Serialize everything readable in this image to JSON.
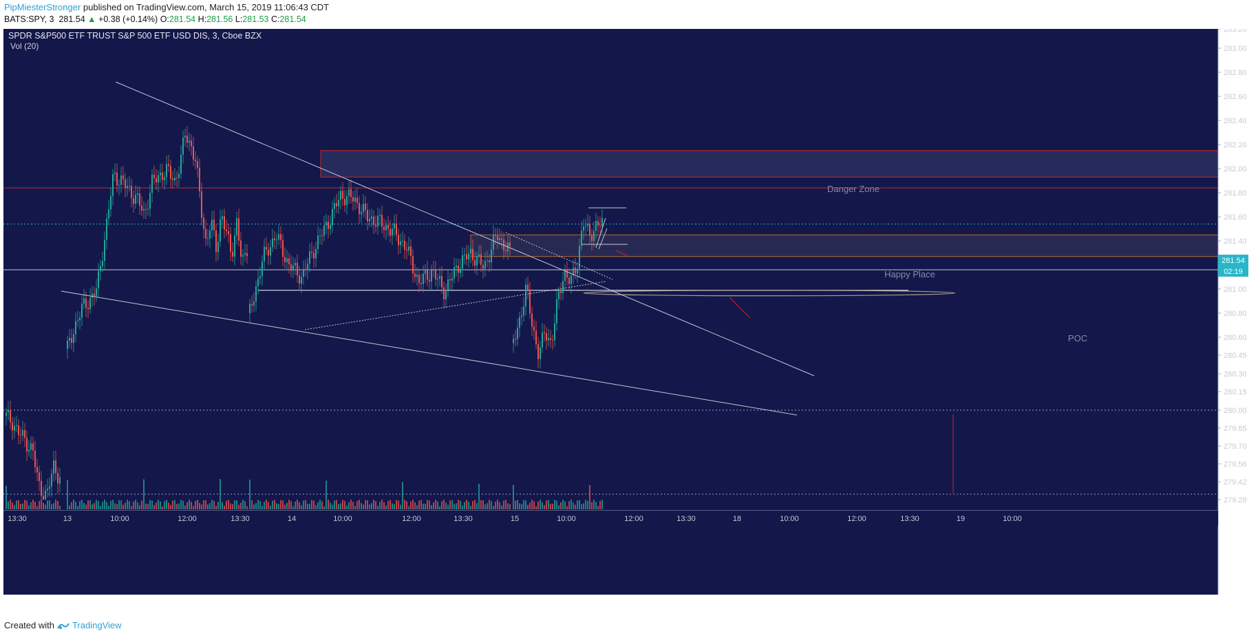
{
  "header": {
    "author": "PipMiesterStronger",
    "published_text": " published on TradingView.com, March 15, 2019 11:06:43 CDT",
    "symbol_interval": "BATS:SPY, 3",
    "last_price": "281.54",
    "change_arrow": "▲",
    "change": "+0.38 (+0.14%)",
    "o_label": "O:",
    "o_value": "281.54",
    "h_label": "H:",
    "h_value": "281.56",
    "l_label": "L:",
    "l_value": "281.53",
    "c_label": "C:",
    "c_value": "281.54"
  },
  "legend": {
    "title": "SPDR S&P500 ETF TRUST S&P 500 ETF USD DIS, 3, Cboe BZX",
    "volume": "Vol (20)"
  },
  "annotations": {
    "danger_zone": "Danger Zone",
    "happy_place": "Happy Place",
    "poc": "POC"
  },
  "price_badge": {
    "price": "281.54",
    "countdown": "02:19"
  },
  "footer": {
    "created_with": "Created with",
    "brand": "TradingView"
  },
  "colors": {
    "background": "#13174a",
    "up": "#26a69a",
    "down": "#ef5350",
    "price_line": "#2ab6c8",
    "danger_border": "#c62828",
    "happy_border": "#b86a2a",
    "trendline": "#c8c8d0"
  },
  "chart_data": {
    "type": "candlestick",
    "title": "SPDR S&P500 ETF TRUST S&P 500 ETF USD DIS, 3, Cboe BZX",
    "y_axis_ticks": [
      "283.20",
      "283.00",
      "282.80",
      "282.60",
      "282.40",
      "282.20",
      "282.00",
      "281.80",
      "281.60",
      "281.40",
      "281.20",
      "281.00",
      "280.80",
      "280.60",
      "280.45",
      "280.30",
      "280.15",
      "280.00",
      "279.85",
      "279.70",
      "279.56",
      "279.42",
      "279.28"
    ],
    "x_axis_ticks": [
      "13:30",
      "13",
      "10:00",
      "12:00",
      "13:30",
      "14",
      "10:00",
      "12:00",
      "13:30",
      "15",
      "10:00",
      "12:00",
      "13:30",
      "18",
      "10:00",
      "12:00",
      "13:30",
      "19",
      "10:00"
    ],
    "last_price": 281.54,
    "levels": {
      "danger_zone": [
        281.93,
        282.15
      ],
      "happy_place": [
        281.27,
        281.45
      ],
      "resistance": 281.84,
      "support": 281.16,
      "poc": 280.99,
      "round": 280.0
    },
    "segments": [
      {
        "name": "session-13-open-drop",
        "points": [
          [
            279.95,
            0
          ],
          [
            279.9,
            6
          ],
          [
            279.8,
            12
          ],
          [
            279.75,
            18
          ],
          [
            279.65,
            25
          ],
          [
            279.4,
            30
          ],
          [
            279.3,
            38
          ],
          [
            279.55,
            44
          ],
          [
            279.45,
            50
          ]
        ]
      },
      {
        "name": "session-13",
        "points": [
          [
            280.5,
            0
          ],
          [
            280.7,
            6
          ],
          [
            280.85,
            12
          ],
          [
            280.92,
            18
          ],
          [
            281.0,
            23
          ],
          [
            281.5,
            30
          ],
          [
            281.95,
            36
          ],
          [
            281.9,
            42
          ],
          [
            281.82,
            48
          ],
          [
            281.75,
            54
          ],
          [
            281.62,
            60
          ],
          [
            281.88,
            66
          ],
          [
            281.95,
            72
          ],
          [
            281.98,
            78
          ],
          [
            281.9,
            84
          ],
          [
            282.05,
            88
          ],
          [
            282.3,
            92
          ],
          [
            282.2,
            96
          ],
          [
            282.05,
            100
          ],
          [
            281.7,
            104
          ],
          [
            281.38,
            108
          ],
          [
            281.55,
            112
          ],
          [
            281.35,
            116
          ],
          [
            281.62,
            120
          ],
          [
            281.45,
            124
          ],
          [
            281.3,
            128
          ],
          [
            281.55,
            132
          ],
          [
            281.2,
            136
          ],
          [
            281.35,
            140
          ]
        ]
      },
      {
        "name": "session-14",
        "points": [
          [
            280.8,
            0
          ],
          [
            281.25,
            6
          ],
          [
            281.45,
            12
          ],
          [
            281.2,
            18
          ],
          [
            281.1,
            24
          ],
          [
            281.35,
            30
          ],
          [
            281.55,
            36
          ],
          [
            281.78,
            42
          ],
          [
            281.75,
            48
          ],
          [
            281.6,
            54
          ],
          [
            281.55,
            60
          ],
          [
            281.48,
            66
          ],
          [
            281.35,
            72
          ],
          [
            281.05,
            78
          ],
          [
            281.15,
            84
          ],
          [
            280.98,
            90
          ],
          [
            281.2,
            96
          ],
          [
            281.3,
            102
          ],
          [
            281.18,
            108
          ],
          [
            281.45,
            114
          ],
          [
            281.3,
            120
          ]
        ]
      },
      {
        "name": "session-15",
        "points": [
          [
            280.55,
            0
          ],
          [
            280.75,
            4
          ],
          [
            281.0,
            8
          ],
          [
            280.7,
            12
          ],
          [
            280.45,
            16
          ],
          [
            280.65,
            20
          ],
          [
            280.55,
            24
          ],
          [
            280.9,
            28
          ],
          [
            281.15,
            32
          ],
          [
            281.05,
            36
          ],
          [
            281.2,
            40
          ],
          [
            281.55,
            44
          ],
          [
            281.45,
            48
          ],
          [
            281.52,
            52
          ],
          [
            281.54,
            56
          ]
        ]
      }
    ]
  }
}
